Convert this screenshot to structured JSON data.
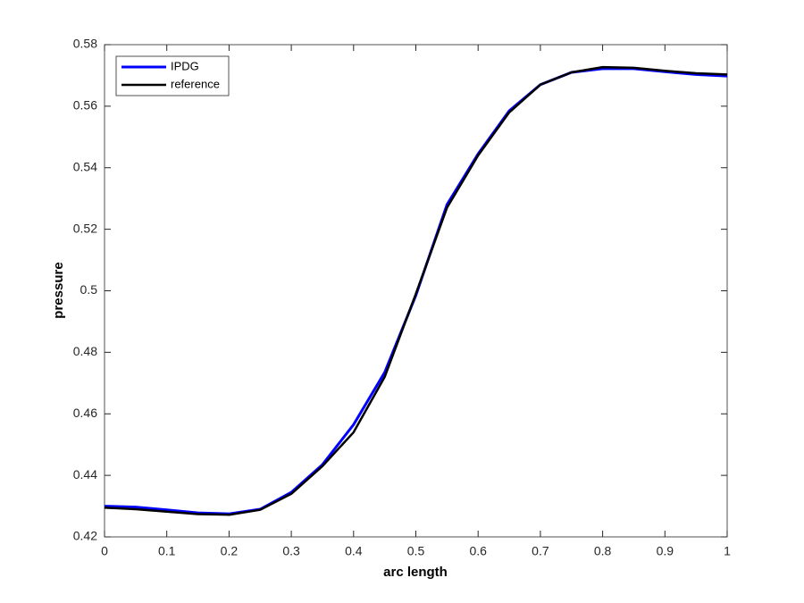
{
  "chart_data": {
    "type": "line",
    "xlabel": "arc length",
    "ylabel": "pressure",
    "x": [
      0,
      0.05,
      0.1,
      0.15,
      0.2,
      0.25,
      0.3,
      0.35,
      0.4,
      0.45,
      0.5,
      0.55,
      0.6,
      0.65,
      0.7,
      0.75,
      0.8,
      0.85,
      0.9,
      0.95,
      1
    ],
    "series": [
      {
        "name": "IPDG",
        "color": "#0000ff",
        "width": 3,
        "values": [
          0.43,
          0.4297,
          0.4288,
          0.4278,
          0.4275,
          0.429,
          0.4345,
          0.4435,
          0.4565,
          0.4735,
          0.4985,
          0.528,
          0.5445,
          0.5585,
          0.567,
          0.571,
          0.5722,
          0.5722,
          0.5712,
          0.5703,
          0.5698
        ]
      },
      {
        "name": "reference",
        "color": "#000000",
        "width": 2.5,
        "values": [
          0.4295,
          0.429,
          0.4282,
          0.4274,
          0.4272,
          0.4288,
          0.434,
          0.443,
          0.454,
          0.472,
          0.499,
          0.527,
          0.544,
          0.558,
          0.567,
          0.571,
          0.5727,
          0.5725,
          0.5715,
          0.5707,
          0.5703
        ]
      }
    ],
    "xlim": [
      0,
      1
    ],
    "xticks": [
      0,
      0.1,
      0.2,
      0.3,
      0.4,
      0.5,
      0.6,
      0.7,
      0.8,
      0.9,
      1
    ],
    "ylim": [
      0.42,
      0.58
    ],
    "yticks": [
      0.42,
      0.44,
      0.46,
      0.48,
      0.5,
      0.52,
      0.54,
      0.56,
      0.58
    ],
    "legend": "top-left",
    "grid": false
  }
}
